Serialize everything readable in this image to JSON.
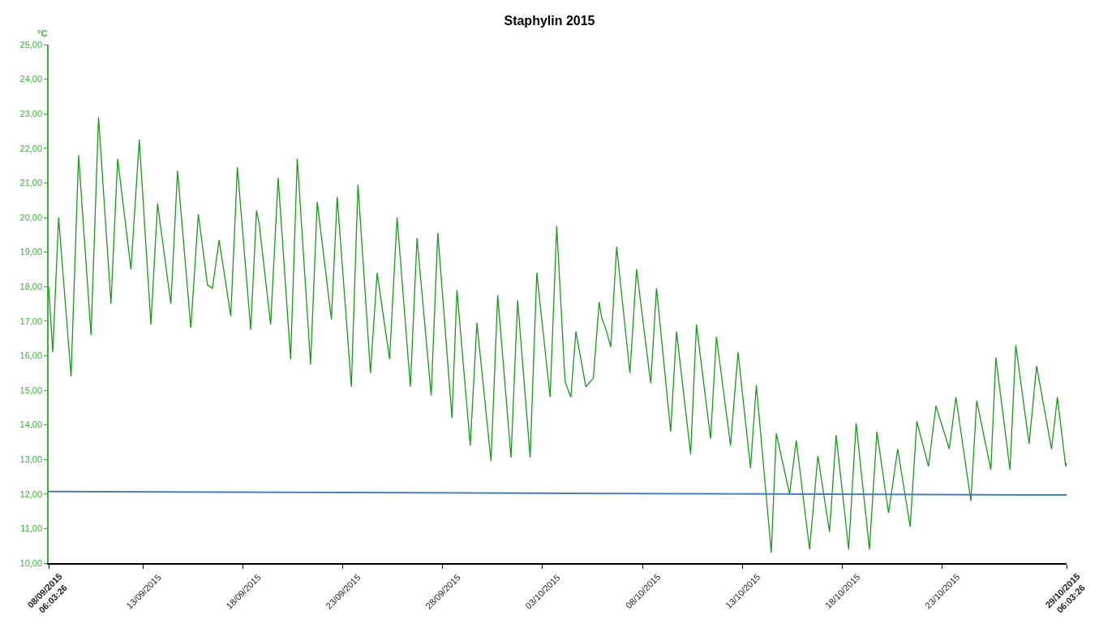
{
  "chart_data": {
    "type": "line",
    "title": "Staphylin 2015",
    "ylabel": "°C",
    "xlim": [
      "2015-09-08T06:03",
      "2015-10-29T06:03"
    ],
    "xticks": [
      {
        "value": "2015-09-08T06:03",
        "label": "08/09/2015\n06:03:26"
      },
      {
        "value": "2015-09-13",
        "label": "13/09/2015"
      },
      {
        "value": "2015-09-18",
        "label": "18/09/2015"
      },
      {
        "value": "2015-09-23",
        "label": "23/09/2015"
      },
      {
        "value": "2015-09-28",
        "label": "28/09/2015"
      },
      {
        "value": "2015-10-03",
        "label": "03/10/2015"
      },
      {
        "value": "2015-10-08",
        "label": "08/10/2015"
      },
      {
        "value": "2015-10-13",
        "label": "13/10/2015"
      },
      {
        "value": "2015-10-18",
        "label": "18/10/2015"
      },
      {
        "value": "2015-10-23",
        "label": "23/10/2015"
      },
      {
        "value": "2015-10-29T06:03",
        "label": "29/10/2015\n06:03:26"
      }
    ],
    "ylim": [
      10,
      25
    ],
    "yticks": [
      {
        "value": 10,
        "label": "10,00"
      },
      {
        "value": 11,
        "label": "11,00"
      },
      {
        "value": 12,
        "label": "12,00"
      },
      {
        "value": 13,
        "label": "13,00"
      },
      {
        "value": 14,
        "label": "14,00"
      },
      {
        "value": 15,
        "label": "15,00"
      },
      {
        "value": 16,
        "label": "16,00"
      },
      {
        "value": 17,
        "label": "17,00"
      },
      {
        "value": 18,
        "label": "18,00"
      },
      {
        "value": 19,
        "label": "19,00"
      },
      {
        "value": 20,
        "label": "20,00"
      },
      {
        "value": 21,
        "label": "21,00"
      },
      {
        "value": 22,
        "label": "22,00"
      },
      {
        "value": 23,
        "label": "23,00"
      },
      {
        "value": 24,
        "label": "24,00"
      },
      {
        "value": 25,
        "label": "25,00"
      }
    ],
    "marker": "none",
    "line_style": "solid",
    "series": [
      {
        "color": "#1a9a1a",
        "x": [
          "2015-09-08T06:03",
          "2015-09-08T11:00",
          "2015-09-08T18:00",
          "2015-09-09T09:00",
          "2015-09-09T18:00",
          "2015-09-10T09:00",
          "2015-09-10T18:00",
          "2015-09-11T09:00",
          "2015-09-11T17:00",
          "2015-09-12T09:00",
          "2015-09-12T19:00",
          "2015-09-13T09:00",
          "2015-09-13T17:00",
          "2015-09-14T09:00",
          "2015-09-14T17:00",
          "2015-09-15T09:00",
          "2015-09-15T18:00",
          "2015-09-16T05:00",
          "2015-09-16T11:00",
          "2015-09-16T19:00",
          "2015-09-17T09:00",
          "2015-09-17T17:00",
          "2015-09-18T09:00",
          "2015-09-18T16:00",
          "2015-09-18T19:00",
          "2015-09-19T09:00",
          "2015-09-19T18:00",
          "2015-09-20T09:00",
          "2015-09-20T17:00",
          "2015-09-21T09:00",
          "2015-09-21T17:00",
          "2015-09-22T10:00",
          "2015-09-22T17:00",
          "2015-09-23T10:00",
          "2015-09-23T18:00",
          "2015-09-24T09:00",
          "2015-09-24T17:00",
          "2015-09-25T08:00",
          "2015-09-25T17:00",
          "2015-09-26T09:00",
          "2015-09-26T17:00",
          "2015-09-27T10:00",
          "2015-09-27T18:00",
          "2015-09-28T11:00",
          "2015-09-28T17:00",
          "2015-09-29T09:00",
          "2015-09-29T17:00",
          "2015-09-30T10:00",
          "2015-09-30T18:00",
          "2015-10-01T10:00",
          "2015-10-01T18:00",
          "2015-10-02T09:00",
          "2015-10-02T17:00",
          "2015-10-03T09:00",
          "2015-10-03T17:00",
          "2015-10-04T03:00",
          "2015-10-04T10:00",
          "2015-10-04T16:00",
          "2015-10-05T04:00",
          "2015-10-05T13:00",
          "2015-10-05T20:00",
          "2015-10-05T23:00",
          "2015-10-06T05:00",
          "2015-10-06T10:00",
          "2015-10-06T17:00",
          "2015-10-07T09:00",
          "2015-10-07T17:00",
          "2015-10-08T10:00",
          "2015-10-08T17:00",
          "2015-10-09T10:00",
          "2015-10-09T17:00",
          "2015-10-10T10:00",
          "2015-10-10T17:00",
          "2015-10-11T10:00",
          "2015-10-11T17:00",
          "2015-10-12T10:00",
          "2015-10-12T19:00",
          "2015-10-13T10:00",
          "2015-10-13T17:00",
          "2015-10-14T11:00",
          "2015-10-14T17:00",
          "2015-10-15T09:00",
          "2015-10-15T17:00",
          "2015-10-16T09:00",
          "2015-10-16T19:00",
          "2015-10-17T09:00",
          "2015-10-17T17:00",
          "2015-10-18T08:00",
          "2015-10-18T17:00",
          "2015-10-19T09:00",
          "2015-10-19T18:00",
          "2015-10-20T08:00",
          "2015-10-20T19:00",
          "2015-10-21T10:00",
          "2015-10-21T18:00",
          "2015-10-22T08:00",
          "2015-10-22T17:00",
          "2015-10-23T09:00",
          "2015-10-23T17:00",
          "2015-10-24T11:00",
          "2015-10-24T18:00",
          "2015-10-25T11:00",
          "2015-10-25T17:00",
          "2015-10-26T10:00",
          "2015-10-26T17:00",
          "2015-10-27T09:00",
          "2015-10-27T18:00",
          "2015-10-28T12:00",
          "2015-10-28T19:00",
          "2015-10-29T05:00",
          "2015-10-29T06:03"
        ],
        "values": [
          18.0,
          16.1,
          20.0,
          15.4,
          21.8,
          16.6,
          22.9,
          17.5,
          21.7,
          18.5,
          22.25,
          16.9,
          20.4,
          17.5,
          21.35,
          16.8,
          20.1,
          18.05,
          17.95,
          19.35,
          17.15,
          21.45,
          16.75,
          20.2,
          19.85,
          16.9,
          21.15,
          15.9,
          21.7,
          15.75,
          20.45,
          17.05,
          20.6,
          15.1,
          20.95,
          15.5,
          18.4,
          15.9,
          20.0,
          15.1,
          19.4,
          14.85,
          19.55,
          14.2,
          17.9,
          13.4,
          16.95,
          12.95,
          17.75,
          13.05,
          17.6,
          13.05,
          18.4,
          14.8,
          19.75,
          15.25,
          14.8,
          16.7,
          15.1,
          15.35,
          17.55,
          17.1,
          16.7,
          16.25,
          19.15,
          15.5,
          18.5,
          15.2,
          17.95,
          13.8,
          16.7,
          13.15,
          16.9,
          13.6,
          16.55,
          13.4,
          16.1,
          12.75,
          15.15,
          10.3,
          13.75,
          12.0,
          13.55,
          10.4,
          13.1,
          10.9,
          13.7,
          10.4,
          14.05,
          10.4,
          13.8,
          11.45,
          13.3,
          11.05,
          14.1,
          12.8,
          14.55,
          13.3,
          14.8,
          11.8,
          14.7,
          12.7,
          15.95,
          12.7,
          16.3,
          13.45,
          15.7,
          13.3,
          14.8,
          12.8,
          12.9
        ]
      },
      {
        "type": "line",
        "color": "#4a7ebb",
        "x": [
          "2015-09-08T06:03",
          "2015-10-29T06:03"
        ],
        "values": [
          12.07,
          11.97
        ]
      }
    ]
  }
}
